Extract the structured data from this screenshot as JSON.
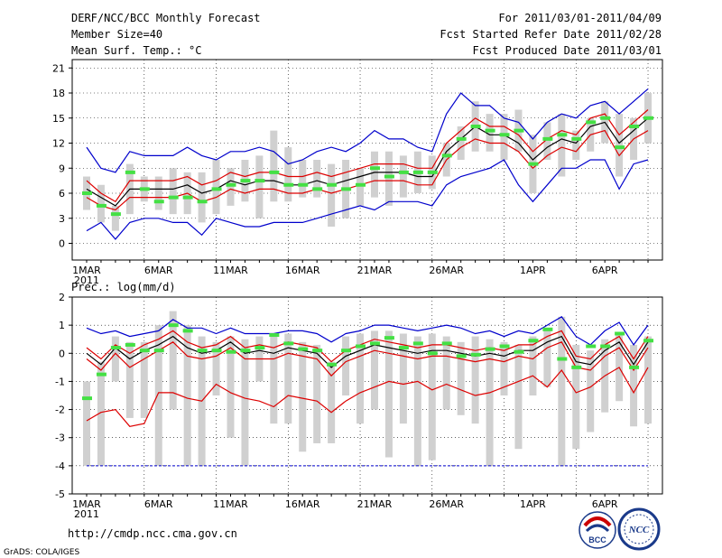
{
  "header": {
    "title": "DERF/NCC/BCC Monthly Forecast",
    "member_size": "Member Size=40",
    "variable1": "Mean Surf. Temp.: °C",
    "period": "For 2011/03/01-2011/04/09",
    "refer_date": "Fcst Started Refer Date 2011/02/28",
    "produced_date": "Fcst Produced Date 2011/03/01"
  },
  "footer": {
    "url": "http://cmdp.ncc.cma.gov.cn",
    "credit": "GrADS: COLA/IGES",
    "logo_bcc": "BCC",
    "logo_ncc": "NCC"
  },
  "chart_data": [
    {
      "type": "line",
      "title": "Mean Surf. Temp.: °C",
      "x_tick_labels": [
        "1MAR",
        "6MAR",
        "11MAR",
        "16MAR",
        "21MAR",
        "26MAR",
        "1APR",
        "6APR"
      ],
      "x_tick_days": [
        1,
        6,
        11,
        16,
        21,
        26,
        32,
        37
      ],
      "year_label": "2011",
      "ylim": [
        -2,
        22
      ],
      "yticks": [
        0,
        3,
        6,
        9,
        12,
        15,
        18,
        21
      ],
      "days": [
        1,
        2,
        3,
        4,
        5,
        6,
        7,
        8,
        9,
        10,
        11,
        12,
        13,
        14,
        15,
        16,
        17,
        18,
        19,
        20,
        21,
        22,
        23,
        24,
        25,
        26,
        27,
        28,
        29,
        30,
        31,
        32,
        33,
        34,
        35,
        36,
        37,
        38,
        39,
        40
      ],
      "series": [
        {
          "name": "upper-blue",
          "color": "#0000cc",
          "values": [
            11.5,
            9,
            8.5,
            11,
            10.5,
            10.5,
            10.5,
            11.5,
            10.5,
            10,
            11,
            11,
            11.5,
            11,
            9.5,
            10,
            11,
            11.5,
            11,
            12,
            13.5,
            12.5,
            12.5,
            11.5,
            11,
            15.5,
            18,
            16.5,
            16.5,
            15,
            14.5,
            12.5,
            14.5,
            15.5,
            15,
            16.5,
            17,
            15.5,
            17,
            18.5
          ]
        },
        {
          "name": "upper-red",
          "color": "#dd0000",
          "values": [
            7.5,
            6,
            5,
            7.5,
            7.5,
            7.5,
            7.5,
            8,
            7,
            7.5,
            8.5,
            8,
            8.5,
            8.5,
            8,
            8,
            8.5,
            8,
            8.5,
            9,
            9.5,
            9.5,
            9.5,
            9,
            9,
            12,
            13.5,
            15,
            14,
            14,
            13,
            11,
            12.5,
            13.5,
            13,
            15,
            15.5,
            13,
            14.5,
            16
          ]
        },
        {
          "name": "ensemble-mean",
          "color": "#000000",
          "values": [
            6.5,
            5.5,
            4.5,
            6.5,
            6.5,
            6.5,
            6.5,
            7,
            6,
            6.5,
            7.5,
            7,
            7.5,
            7.5,
            7,
            7,
            7.5,
            7,
            7.5,
            8,
            8.5,
            8.5,
            8.5,
            8,
            8,
            11,
            12.5,
            14,
            13,
            13,
            12,
            10,
            11.5,
            12.5,
            12,
            14,
            14.5,
            12,
            13.5,
            15
          ]
        },
        {
          "name": "lower-red",
          "color": "#dd0000",
          "values": [
            5.5,
            4.5,
            4,
            5.5,
            5.5,
            5.5,
            5.5,
            6,
            5,
            5.5,
            6.5,
            6,
            6.5,
            6.5,
            6,
            6,
            6.5,
            6,
            6.5,
            7,
            7.5,
            7.5,
            7.5,
            7,
            7,
            10,
            11.5,
            12.5,
            12,
            12,
            11,
            9,
            10.5,
            11.5,
            11,
            13,
            13.5,
            10.5,
            12.5,
            13.5
          ]
        },
        {
          "name": "lower-blue",
          "color": "#0000cc",
          "values": [
            1.5,
            2.5,
            0.5,
            2.5,
            3,
            3,
            2.5,
            2.5,
            1,
            3,
            2.5,
            2,
            2,
            2.5,
            2.5,
            2.5,
            3,
            3.5,
            4,
            4.5,
            4,
            5,
            5,
            5,
            4.5,
            7,
            8,
            8.5,
            9,
            10,
            7,
            5,
            7,
            9,
            9,
            10,
            10,
            6.5,
            9.5,
            10
          ]
        }
      ],
      "bars_low": [
        4,
        2.5,
        1.5,
        3.5,
        5,
        4,
        3.5,
        3.5,
        2.5,
        3.5,
        4.5,
        5,
        3,
        5,
        5,
        5.5,
        5.5,
        2,
        3,
        4.5,
        5.5,
        4.5,
        5.5,
        6,
        6.5,
        8,
        10,
        11,
        11,
        10,
        11,
        6,
        10,
        8,
        10,
        11,
        12,
        8,
        10,
        12
      ],
      "bars_high": [
        8,
        7,
        4.5,
        9.5,
        8,
        8,
        9,
        8.5,
        8.5,
        10,
        9,
        10,
        10.5,
        13.5,
        11.5,
        10,
        10,
        9.5,
        10,
        9,
        11,
        11,
        10.5,
        11,
        10.5,
        12,
        14,
        17,
        15.5,
        15.5,
        16,
        13,
        14.5,
        15.5,
        13.5,
        15,
        17,
        15.5,
        15,
        18
      ],
      "markers": [
        6,
        4.5,
        3.5,
        8.5,
        6.5,
        5,
        5.5,
        5.5,
        5,
        6.5,
        7,
        7.5,
        7.5,
        8.5,
        7,
        7,
        6.5,
        7,
        6.5,
        7,
        9,
        8,
        8.5,
        8.5,
        8.5,
        10.5,
        12.5,
        14,
        13.5,
        13,
        13.5,
        9.5,
        12.5,
        13,
        12.5,
        14.5,
        15,
        11.5,
        14,
        15
      ]
    },
    {
      "type": "line",
      "title": "Prec.: log(mm/d)",
      "x_tick_labels": [
        "1MAR",
        "6MAR",
        "11MAR",
        "16MAR",
        "21MAR",
        "26MAR",
        "1APR",
        "6APR"
      ],
      "x_tick_days": [
        1,
        6,
        11,
        16,
        21,
        26,
        32,
        37
      ],
      "year_label": "2011",
      "ylim": [
        -5,
        2
      ],
      "yticks": [
        -5,
        -4,
        -3,
        -2,
        -1,
        0,
        1,
        2
      ],
      "days": [
        1,
        2,
        3,
        4,
        5,
        6,
        7,
        8,
        9,
        10,
        11,
        12,
        13,
        14,
        15,
        16,
        17,
        18,
        19,
        20,
        21,
        22,
        23,
        24,
        25,
        26,
        27,
        28,
        29,
        30,
        31,
        32,
        33,
        34,
        35,
        36,
        37,
        38,
        39,
        40
      ],
      "series": [
        {
          "name": "upper-blue",
          "color": "#0000cc",
          "values": [
            0.9,
            0.7,
            0.8,
            0.6,
            0.7,
            0.8,
            1.2,
            0.9,
            0.9,
            0.7,
            0.9,
            0.7,
            0.7,
            0.7,
            0.8,
            0.8,
            0.7,
            0.4,
            0.7,
            0.8,
            1.0,
            1.0,
            0.9,
            0.8,
            0.9,
            1.0,
            0.9,
            0.7,
            0.8,
            0.6,
            0.8,
            0.7,
            1.0,
            1.3,
            0.6,
            0.3,
            0.8,
            1.1,
            0.3,
            1.0
          ]
        },
        {
          "name": "upper-red",
          "color": "#dd0000",
          "values": [
            0.2,
            -0.2,
            0.3,
            0,
            0.3,
            0.5,
            0.8,
            0.4,
            0.2,
            0.3,
            0.6,
            0.2,
            0.3,
            0.2,
            0.4,
            0.3,
            0.2,
            -0.3,
            0.1,
            0.3,
            0.5,
            0.4,
            0.3,
            0.2,
            0.3,
            0.3,
            0.2,
            0.1,
            0.2,
            0.1,
            0.3,
            0.3,
            0.6,
            0.8,
            -0.1,
            -0.2,
            0.3,
            0.6,
            -0.2,
            0.6
          ]
        },
        {
          "name": "ensemble-mean",
          "color": "#000000",
          "values": [
            0.0,
            -0.4,
            0.2,
            -0.2,
            0.1,
            0.3,
            0.6,
            0.2,
            0.0,
            0.1,
            0.4,
            0,
            0.1,
            0,
            0.2,
            0.1,
            0,
            -0.5,
            -0.1,
            0.1,
            0.3,
            0.2,
            0.1,
            0,
            0.1,
            0.1,
            0,
            -0.1,
            0,
            -0.1,
            0.1,
            0.1,
            0.4,
            0.6,
            -0.3,
            -0.4,
            0.1,
            0.4,
            -0.4,
            0.4
          ]
        },
        {
          "name": "lower-red",
          "color": "#dd0000",
          "values": [
            -0.2,
            -0.6,
            0,
            -0.5,
            -0.2,
            0.1,
            0.4,
            -0.1,
            -0.2,
            -0.1,
            0.2,
            -0.2,
            -0.2,
            -0.2,
            0,
            -0.1,
            -0.2,
            -0.8,
            -0.3,
            -0.1,
            0.1,
            0,
            -0.1,
            -0.2,
            -0.1,
            -0.1,
            -0.2,
            -0.3,
            -0.2,
            -0.3,
            -0.1,
            -0.2,
            0.2,
            0.4,
            -0.5,
            -0.6,
            -0.1,
            0.2,
            -0.6,
            0.2
          ]
        },
        {
          "name": "lower-red-2",
          "color": "#dd0000",
          "values": [
            -2.4,
            -2.1,
            -2.0,
            -2.6,
            -2.5,
            -1.4,
            -1.4,
            -1.6,
            -1.7,
            -1.1,
            -1.4,
            -1.6,
            -1.7,
            -1.9,
            -1.5,
            -1.6,
            -1.7,
            -2.1,
            -1.7,
            -1.4,
            -1.2,
            -1.0,
            -1.1,
            -1.0,
            -1.3,
            -1.1,
            -1.3,
            -1.5,
            -1.4,
            -1.2,
            -1.0,
            -0.8,
            -1.2,
            -0.6,
            -1.4,
            -1.2,
            -0.8,
            -0.5,
            -1.4,
            -0.5
          ]
        },
        {
          "name": "lower-blue",
          "color": "#0000cc",
          "values": [
            -4,
            -4,
            -4,
            -4,
            -4,
            -4,
            -4,
            -4,
            -4,
            -4,
            -4,
            -4,
            -4,
            -4,
            -4,
            -4,
            -4,
            -4,
            -4,
            -4,
            -4,
            -4,
            -4,
            -4,
            -4,
            -4,
            -4,
            -4,
            -4,
            -4,
            -4,
            -4,
            -4,
            -4,
            -4,
            -4,
            -4,
            -4,
            -4,
            -4
          ]
        }
      ],
      "bars_low": [
        -4,
        -4,
        -1,
        -2.3,
        -2.3,
        -4,
        -2,
        -4,
        -4,
        -1.5,
        -3,
        -4,
        -1,
        -2.5,
        -2.5,
        -3.5,
        -3.2,
        -3.2,
        -1.5,
        -2.5,
        -2,
        -3.7,
        -2.5,
        -4,
        -3.8,
        -2,
        -2.2,
        -2.5,
        -4,
        -1.5,
        -3.4,
        -1.5,
        -1.2,
        -4,
        -3.4,
        -2.8,
        -2.1,
        -1.7,
        -2.6,
        -2.5
      ],
      "bars_high": [
        -1,
        -0.3,
        0.6,
        0.4,
        0.4,
        1.0,
        1.5,
        1.0,
        0.6,
        0.4,
        0.6,
        0.5,
        0.6,
        0.6,
        0.7,
        0.4,
        0.3,
        -0.3,
        0.6,
        0.7,
        0.8,
        0.8,
        0.7,
        0.6,
        0.7,
        0.6,
        0.4,
        0.6,
        0.5,
        0.4,
        0.3,
        0.6,
        0.9,
        1.3,
        0.3,
        0.1,
        0.5,
        0.7,
        0.3,
        0.6
      ],
      "markers": [
        -1.6,
        -0.75,
        0.2,
        0.3,
        0.1,
        0.1,
        1.0,
        0.8,
        0.1,
        0.1,
        0.05,
        0.1,
        0.2,
        0.65,
        0.35,
        0.15,
        0.1,
        -0.4,
        0.1,
        0.25,
        0.35,
        0.55,
        0.2,
        0.35,
        0,
        0.35,
        -0.1,
        -0.05,
        0.15,
        0.25,
        0.05,
        0.45,
        0.85,
        -0.2,
        -0.5,
        0.25,
        0.25,
        0.7,
        -0.5,
        0.45
      ]
    }
  ]
}
